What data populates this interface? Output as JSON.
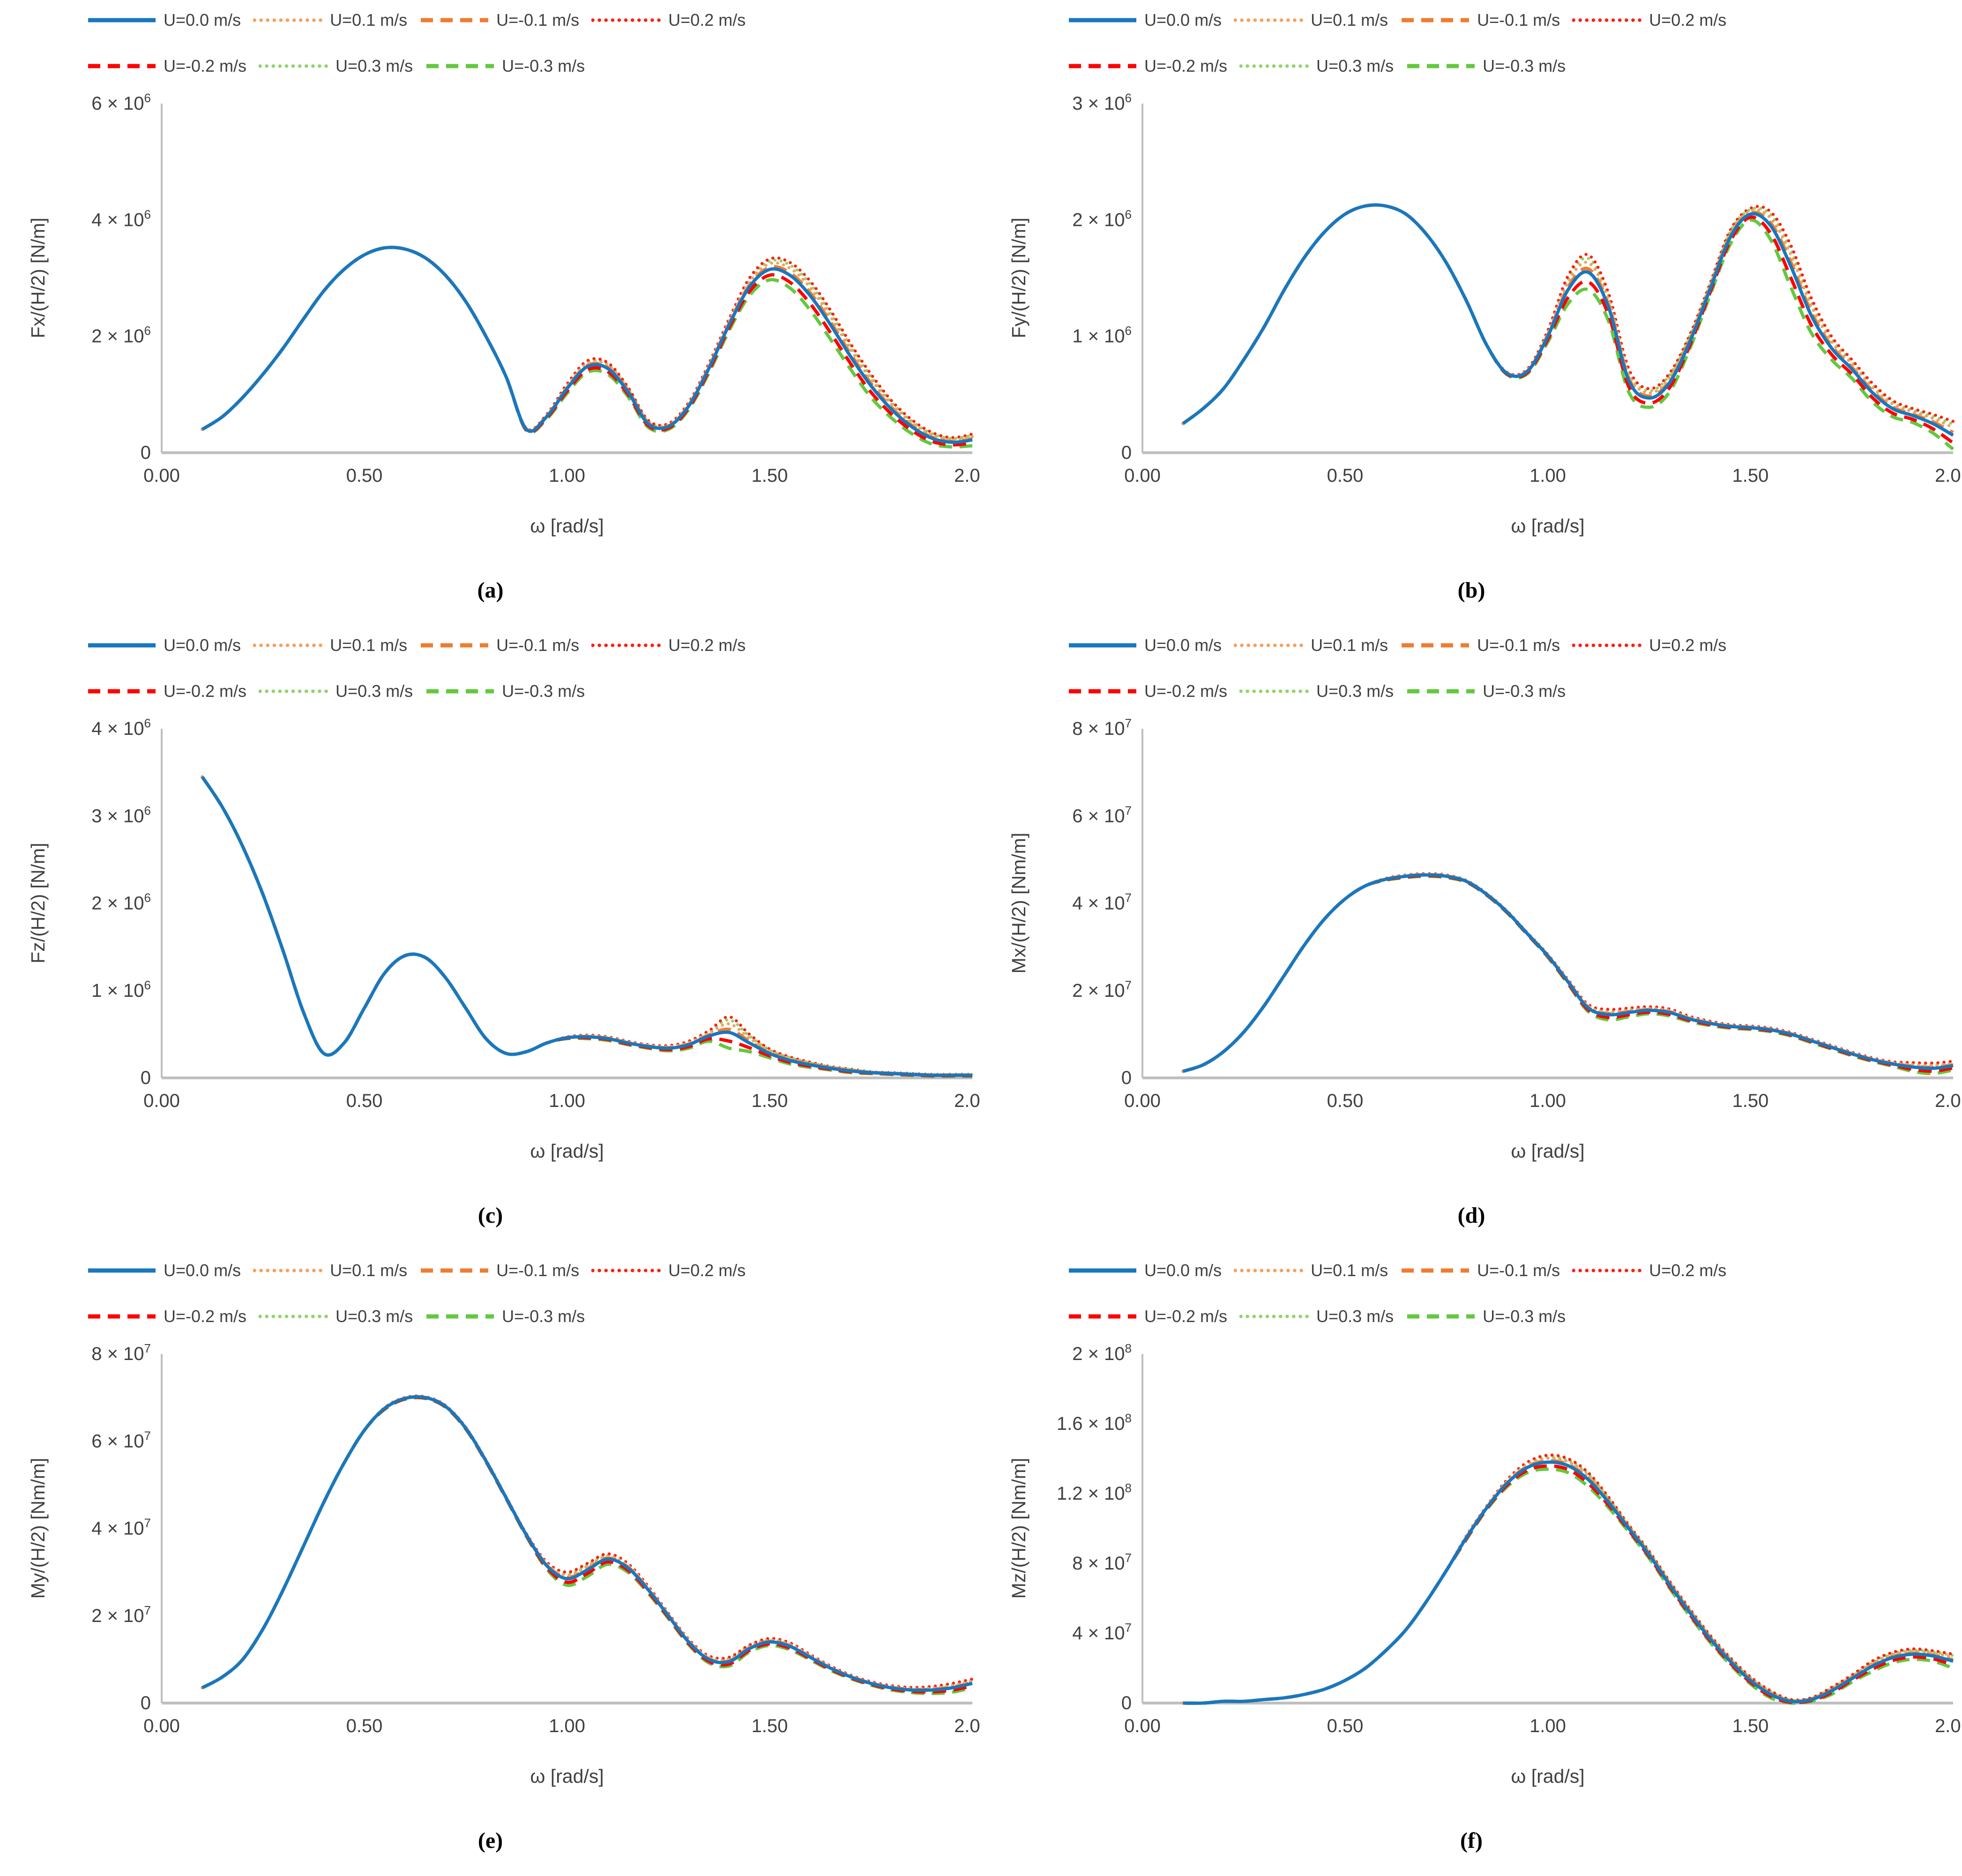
{
  "figure": {
    "background": "#ffffff",
    "axis_color": "#bfbfbf",
    "tick_text_color": "#404040",
    "description": "Six line charts (a)-(f) of force and moment transfer functions versus wave frequency for seven forward speeds U"
  },
  "legend": {
    "items": [
      {
        "label": "U=0.0 m/s",
        "color": "#1878be",
        "dash": "solid",
        "factor": 0
      },
      {
        "label": "U=0.1 m/s",
        "color": "#f2a15d",
        "dash": "dotted",
        "factor": 0.55
      },
      {
        "label": "U=-0.1 m/s",
        "color": "#ed7d31",
        "dash": "dashed",
        "factor": 0.2
      },
      {
        "label": "U=0.2 m/s",
        "color": "#ff1f0f",
        "dash": "dotted",
        "factor": 1.0
      },
      {
        "label": "U=-0.2 m/s",
        "color": "#ff0000",
        "dash": "dashed",
        "factor": -0.55
      },
      {
        "label": "U=0.3 m/s",
        "color": "#90d46a",
        "dash": "dotted",
        "factor": 0.8
      },
      {
        "label": "U=-0.3 m/s",
        "color": "#63c83f",
        "dash": "dashed",
        "factor": -1.0
      }
    ]
  },
  "chart_data": [
    {
      "type": "line",
      "panel": "a",
      "caption": "(a)",
      "xlabel": "ω [rad/s]",
      "ylabel": "Fx/(H/2) [N/m]",
      "unit_scale": 1000000,
      "x_range": [
        0,
        2
      ],
      "y_range": [
        0,
        6
      ],
      "xticks": [
        {
          "v": 0,
          "t": "0.00"
        },
        {
          "v": 0.5,
          "t": "0.50"
        },
        {
          "v": 1,
          "t": "1.00"
        },
        {
          "v": 1.5,
          "t": "1.50"
        },
        {
          "v": 2,
          "t": "2.00"
        }
      ],
      "yticks": [
        {
          "v": 0,
          "t": "0"
        },
        {
          "v": 2,
          "t": "2 × 10",
          "e": "6"
        },
        {
          "v": 4,
          "t": "4 × 10",
          "e": "6"
        },
        {
          "v": 6,
          "t": "6 × 10",
          "e": "6"
        }
      ],
      "x": [
        0.1,
        0.15,
        0.2,
        0.25,
        0.3,
        0.35,
        0.4,
        0.45,
        0.5,
        0.55,
        0.6,
        0.65,
        0.7,
        0.75,
        0.8,
        0.85,
        0.9,
        0.95,
        1.0,
        1.05,
        1.1,
        1.15,
        1.2,
        1.25,
        1.3,
        1.35,
        1.4,
        1.45,
        1.5,
        1.55,
        1.6,
        1.65,
        1.7,
        1.75,
        1.8,
        1.85,
        1.9,
        1.95,
        2.0
      ],
      "base": [
        0.4,
        0.62,
        0.95,
        1.35,
        1.8,
        2.3,
        2.78,
        3.15,
        3.4,
        3.52,
        3.5,
        3.35,
        3.05,
        2.6,
        2.0,
        1.3,
        0.4,
        0.62,
        1.1,
        1.48,
        1.45,
        1.05,
        0.5,
        0.45,
        0.8,
        1.45,
        2.2,
        2.85,
        3.15,
        3.05,
        2.7,
        2.2,
        1.65,
        1.15,
        0.75,
        0.45,
        0.25,
        0.18,
        0.22
      ],
      "divergence": [
        0,
        0,
        0,
        0,
        0,
        0,
        0,
        0,
        0,
        0,
        0,
        0,
        0,
        0,
        0,
        0,
        0.02,
        0.04,
        0.08,
        0.1,
        0.1,
        0.08,
        0.06,
        0.05,
        0.06,
        0.08,
        0.1,
        0.15,
        0.18,
        0.22,
        0.25,
        0.25,
        0.22,
        0.2,
        0.15,
        0.12,
        0.1,
        0.08,
        0.1
      ]
    },
    {
      "type": "line",
      "panel": "b",
      "caption": "(b)",
      "xlabel": "ω [rad/s]",
      "ylabel": "Fy/(H/2) [N/m]",
      "unit_scale": 1000000,
      "x_range": [
        0,
        2
      ],
      "y_range": [
        0,
        3
      ],
      "xticks": [
        {
          "v": 0,
          "t": "0.00"
        },
        {
          "v": 0.5,
          "t": "0.50"
        },
        {
          "v": 1,
          "t": "1.00"
        },
        {
          "v": 1.5,
          "t": "1.50"
        },
        {
          "v": 2,
          "t": "2.00"
        }
      ],
      "yticks": [
        {
          "v": 0,
          "t": "0"
        },
        {
          "v": 1,
          "t": "1 × 10",
          "e": "6"
        },
        {
          "v": 2,
          "t": "2 × 10",
          "e": "6"
        },
        {
          "v": 3,
          "t": "3 × 10",
          "e": "6"
        }
      ],
      "x": [
        0.1,
        0.15,
        0.2,
        0.25,
        0.3,
        0.35,
        0.4,
        0.45,
        0.5,
        0.55,
        0.6,
        0.65,
        0.7,
        0.75,
        0.8,
        0.85,
        0.9,
        0.95,
        1.0,
        1.05,
        1.1,
        1.15,
        1.2,
        1.25,
        1.3,
        1.35,
        1.4,
        1.45,
        1.5,
        1.55,
        1.6,
        1.65,
        1.7,
        1.75,
        1.8,
        1.85,
        1.9,
        1.95,
        2.0
      ],
      "base": [
        0.25,
        0.38,
        0.55,
        0.8,
        1.08,
        1.4,
        1.68,
        1.9,
        2.05,
        2.12,
        2.12,
        2.05,
        1.88,
        1.63,
        1.3,
        0.92,
        0.68,
        0.7,
        1.0,
        1.4,
        1.55,
        1.25,
        0.62,
        0.47,
        0.6,
        0.95,
        1.4,
        1.85,
        2.05,
        1.95,
        1.6,
        1.18,
        0.9,
        0.72,
        0.52,
        0.38,
        0.32,
        0.25,
        0.15
      ],
      "divergence": [
        0,
        0,
        0,
        0,
        0,
        0,
        0,
        0,
        0,
        0,
        0,
        0,
        0,
        0,
        0,
        0,
        0.01,
        0.02,
        0.05,
        0.12,
        0.15,
        0.12,
        0.1,
        0.08,
        0.08,
        0.06,
        0.05,
        0.06,
        0.05,
        0.12,
        0.18,
        0.15,
        0.1,
        0.08,
        0.08,
        0.07,
        0.06,
        0.08,
        0.12
      ]
    },
    {
      "type": "line",
      "panel": "c",
      "caption": "(c)",
      "xlabel": "ω [rad/s]",
      "ylabel": "Fz/(H/2) [N/m]",
      "unit_scale": 1000000,
      "x_range": [
        0,
        2
      ],
      "y_range": [
        0,
        4
      ],
      "xticks": [
        {
          "v": 0,
          "t": "0.00"
        },
        {
          "v": 0.5,
          "t": "0.50"
        },
        {
          "v": 1,
          "t": "1.00"
        },
        {
          "v": 1.5,
          "t": "1.50"
        },
        {
          "v": 2,
          "t": "2.00"
        }
      ],
      "yticks": [
        {
          "v": 0,
          "t": "0"
        },
        {
          "v": 1,
          "t": "1 × 10",
          "e": "6"
        },
        {
          "v": 2,
          "t": "2 × 10",
          "e": "6"
        },
        {
          "v": 3,
          "t": "3 × 10",
          "e": "6"
        },
        {
          "v": 4,
          "t": "4 × 10",
          "e": "6"
        }
      ],
      "x": [
        0.1,
        0.15,
        0.2,
        0.25,
        0.3,
        0.35,
        0.4,
        0.45,
        0.5,
        0.55,
        0.6,
        0.65,
        0.7,
        0.75,
        0.8,
        0.85,
        0.9,
        0.95,
        1.0,
        1.05,
        1.1,
        1.15,
        1.2,
        1.25,
        1.3,
        1.35,
        1.4,
        1.45,
        1.5,
        1.55,
        1.6,
        1.65,
        1.7,
        1.75,
        1.8,
        1.85,
        1.9,
        1.95,
        2.0
      ],
      "base": [
        3.45,
        3.1,
        2.65,
        2.1,
        1.45,
        0.75,
        0.28,
        0.4,
        0.8,
        1.2,
        1.4,
        1.38,
        1.15,
        0.8,
        0.45,
        0.28,
        0.3,
        0.4,
        0.46,
        0.47,
        0.45,
        0.4,
        0.36,
        0.34,
        0.38,
        0.48,
        0.52,
        0.4,
        0.28,
        0.2,
        0.15,
        0.11,
        0.08,
        0.06,
        0.05,
        0.04,
        0.03,
        0.03,
        0.03
      ],
      "divergence": [
        0,
        0,
        0,
        0,
        0,
        0,
        0,
        0,
        0,
        0,
        0,
        0,
        0,
        0,
        0,
        0,
        0,
        0,
        0.01,
        0.02,
        0.02,
        0.02,
        0.02,
        0.03,
        0.04,
        0.06,
        0.18,
        0.1,
        0.05,
        0.04,
        0.03,
        0.02,
        0.02,
        0.01,
        0.01,
        0.01,
        0.01,
        0.01,
        0.01
      ]
    },
    {
      "type": "line",
      "panel": "d",
      "caption": "(d)",
      "xlabel": "ω [rad/s]",
      "ylabel": "Mx/(H/2) [Nm/m]",
      "unit_scale": 10000000,
      "x_range": [
        0,
        2
      ],
      "y_range": [
        0,
        8
      ],
      "xticks": [
        {
          "v": 0,
          "t": "0.00"
        },
        {
          "v": 0.5,
          "t": "0.50"
        },
        {
          "v": 1,
          "t": "1.00"
        },
        {
          "v": 1.5,
          "t": "1.50"
        },
        {
          "v": 2,
          "t": "2.00"
        }
      ],
      "yticks": [
        {
          "v": 0,
          "t": "0"
        },
        {
          "v": 2,
          "t": "2 × 10",
          "e": "7"
        },
        {
          "v": 4,
          "t": "4 × 10",
          "e": "7"
        },
        {
          "v": 6,
          "t": "6 × 10",
          "e": "7"
        },
        {
          "v": 8,
          "t": "8 × 10",
          "e": "7"
        }
      ],
      "x": [
        0.1,
        0.15,
        0.2,
        0.25,
        0.3,
        0.35,
        0.4,
        0.45,
        0.5,
        0.55,
        0.6,
        0.65,
        0.7,
        0.75,
        0.8,
        0.85,
        0.9,
        0.95,
        1.0,
        1.05,
        1.1,
        1.15,
        1.2,
        1.25,
        1.3,
        1.35,
        1.4,
        1.45,
        1.5,
        1.55,
        1.6,
        1.65,
        1.7,
        1.75,
        1.8,
        1.85,
        1.9,
        1.95,
        2.0
      ],
      "base": [
        0.15,
        0.3,
        0.6,
        1.05,
        1.65,
        2.35,
        3.05,
        3.65,
        4.1,
        4.4,
        4.55,
        4.62,
        4.65,
        4.62,
        4.5,
        4.2,
        3.8,
        3.3,
        2.8,
        2.2,
        1.6,
        1.45,
        1.5,
        1.55,
        1.5,
        1.35,
        1.25,
        1.18,
        1.15,
        1.1,
        1.0,
        0.85,
        0.7,
        0.55,
        0.42,
        0.32,
        0.25,
        0.22,
        0.28
      ],
      "divergence": [
        0,
        0,
        0,
        0,
        0,
        0,
        0,
        0,
        0,
        0,
        0.02,
        0.03,
        0.03,
        0.03,
        0.02,
        0.02,
        0.02,
        0.02,
        0.03,
        0.05,
        0.08,
        0.12,
        0.1,
        0.08,
        0.08,
        0.06,
        0.05,
        0.04,
        0.04,
        0.04,
        0.04,
        0.04,
        0.04,
        0.04,
        0.04,
        0.05,
        0.1,
        0.12,
        0.1
      ]
    },
    {
      "type": "line",
      "panel": "e",
      "caption": "(e)",
      "xlabel": "ω [rad/s]",
      "ylabel": "My/(H/2) [Nm/m]",
      "unit_scale": 10000000,
      "x_range": [
        0,
        2
      ],
      "y_range": [
        0,
        8
      ],
      "xticks": [
        {
          "v": 0,
          "t": "0.00"
        },
        {
          "v": 0.5,
          "t": "0.50"
        },
        {
          "v": 1,
          "t": "1.00"
        },
        {
          "v": 1.5,
          "t": "1.50"
        },
        {
          "v": 2,
          "t": "2.00"
        }
      ],
      "yticks": [
        {
          "v": 0,
          "t": "0"
        },
        {
          "v": 2,
          "t": "2 × 10",
          "e": "7"
        },
        {
          "v": 4,
          "t": "4 × 10",
          "e": "7"
        },
        {
          "v": 6,
          "t": "6 × 10",
          "e": "7"
        },
        {
          "v": 8,
          "t": "8 × 10",
          "e": "7"
        }
      ],
      "x": [
        0.1,
        0.15,
        0.2,
        0.25,
        0.3,
        0.35,
        0.4,
        0.45,
        0.5,
        0.55,
        0.6,
        0.65,
        0.7,
        0.75,
        0.8,
        0.85,
        0.9,
        0.95,
        1.0,
        1.05,
        1.1,
        1.15,
        1.2,
        1.25,
        1.3,
        1.35,
        1.4,
        1.45,
        1.5,
        1.55,
        1.6,
        1.65,
        1.7,
        1.75,
        1.8,
        1.85,
        1.9,
        1.95,
        2.0
      ],
      "base": [
        0.35,
        0.6,
        1.0,
        1.7,
        2.6,
        3.6,
        4.6,
        5.5,
        6.25,
        6.75,
        6.98,
        7.0,
        6.8,
        6.3,
        5.55,
        4.7,
        3.85,
        3.15,
        2.85,
        3.05,
        3.3,
        3.1,
        2.6,
        2.0,
        1.4,
        1.0,
        0.95,
        1.25,
        1.4,
        1.3,
        1.05,
        0.8,
        0.6,
        0.45,
        0.35,
        0.3,
        0.3,
        0.35,
        0.45
      ],
      "divergence": [
        0,
        0,
        0,
        0,
        0,
        0,
        0,
        0,
        0,
        0.02,
        0.02,
        0.02,
        0.02,
        0.02,
        0.02,
        0.02,
        0.03,
        0.08,
        0.15,
        0.15,
        0.12,
        0.1,
        0.08,
        0.06,
        0.06,
        0.08,
        0.1,
        0.08,
        0.08,
        0.08,
        0.06,
        0.05,
        0.04,
        0.04,
        0.05,
        0.06,
        0.08,
        0.1,
        0.1
      ]
    },
    {
      "type": "line",
      "panel": "f",
      "caption": "(f)",
      "xlabel": "ω [rad/s]",
      "ylabel": "Mz/(H/2) [Nm/m]",
      "unit_scale": 100000000,
      "x_range": [
        0,
        2
      ],
      "y_range": [
        0,
        2
      ],
      "xticks": [
        {
          "v": 0,
          "t": "0.00"
        },
        {
          "v": 0.5,
          "t": "0.50"
        },
        {
          "v": 1,
          "t": "1.00"
        },
        {
          "v": 1.5,
          "t": "1.50"
        },
        {
          "v": 2,
          "t": "2.00"
        }
      ],
      "yticks": [
        {
          "v": 0,
          "t": "0"
        },
        {
          "v": 0.4,
          "t": "4 × 10",
          "e": "7"
        },
        {
          "v": 0.8,
          "t": "8 × 10",
          "e": "7"
        },
        {
          "v": 1.2,
          "t": "1.2 × 10",
          "e": "8"
        },
        {
          "v": 1.6,
          "t": "1.6 × 10",
          "e": "8"
        },
        {
          "v": 2,
          "t": "2 × 10",
          "e": "8"
        }
      ],
      "x": [
        0.1,
        0.15,
        0.2,
        0.25,
        0.3,
        0.35,
        0.4,
        0.45,
        0.5,
        0.55,
        0.6,
        0.65,
        0.7,
        0.75,
        0.8,
        0.85,
        0.9,
        0.95,
        1.0,
        1.05,
        1.1,
        1.15,
        1.2,
        1.25,
        1.3,
        1.35,
        1.4,
        1.45,
        1.5,
        1.55,
        1.6,
        1.65,
        1.7,
        1.75,
        1.8,
        1.85,
        1.9,
        1.95,
        2.0
      ],
      "base": [
        0.0,
        0.0,
        0.01,
        0.01,
        0.02,
        0.03,
        0.05,
        0.08,
        0.13,
        0.2,
        0.3,
        0.42,
        0.58,
        0.76,
        0.95,
        1.12,
        1.26,
        1.35,
        1.38,
        1.36,
        1.28,
        1.15,
        1.0,
        0.85,
        0.68,
        0.52,
        0.37,
        0.24,
        0.13,
        0.05,
        0.01,
        0.02,
        0.07,
        0.14,
        0.21,
        0.26,
        0.28,
        0.27,
        0.24
      ],
      "divergence": [
        0,
        0,
        0,
        0,
        0,
        0,
        0,
        0,
        0,
        0,
        0,
        0,
        0,
        0,
        0.01,
        0.01,
        0.02,
        0.03,
        0.04,
        0.04,
        0.04,
        0.03,
        0.02,
        0.02,
        0.02,
        0.02,
        0.02,
        0.02,
        0.02,
        0.02,
        0.01,
        0.01,
        0.02,
        0.02,
        0.03,
        0.03,
        0.03,
        0.03,
        0.04
      ]
    }
  ]
}
